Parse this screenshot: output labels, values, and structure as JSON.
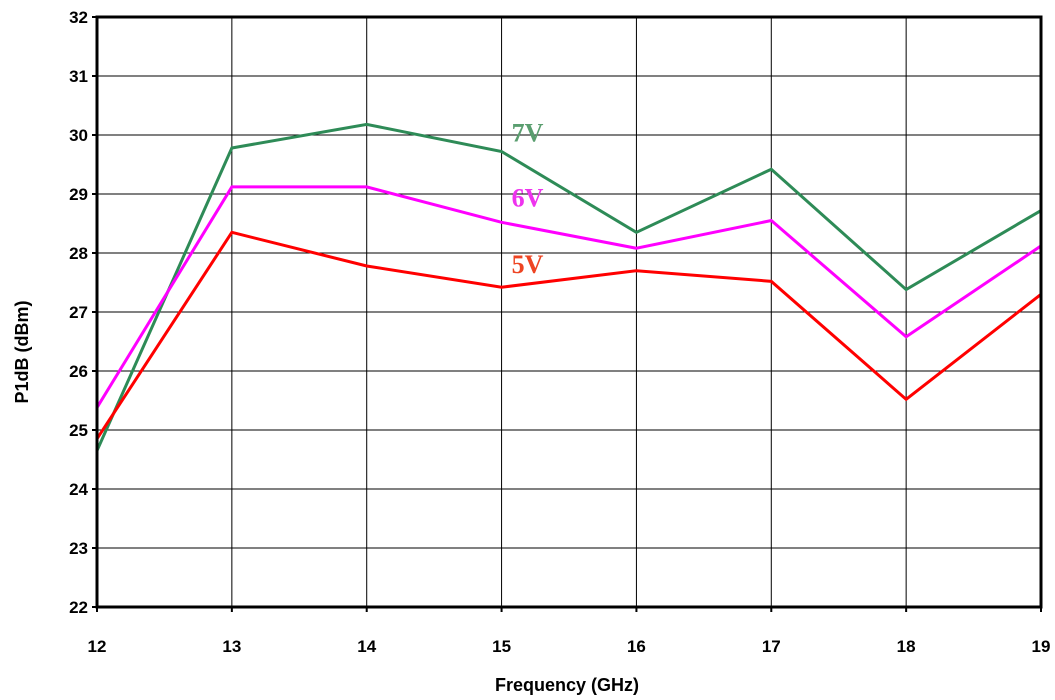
{
  "chart_data": {
    "type": "line",
    "xlabel": "Frequency (GHz)",
    "ylabel": "P1dB (dBm)",
    "xlim": [
      12,
      19
    ],
    "ylim": [
      22,
      32
    ],
    "x_ticks": [
      12,
      13,
      14,
      15,
      16,
      17,
      18,
      19
    ],
    "y_ticks": [
      22,
      23,
      24,
      25,
      26,
      27,
      28,
      29,
      30,
      31,
      32
    ],
    "grid": true,
    "x": [
      12,
      13,
      14,
      15,
      16,
      17,
      18,
      19
    ],
    "series": [
      {
        "name": "7V",
        "color": "#2e8b57",
        "label_color": "#5a9e6f",
        "values": [
          24.65,
          29.78,
          30.18,
          29.72,
          28.35,
          29.42,
          27.38,
          28.72
        ]
      },
      {
        "name": "6V",
        "color": "#ff00ff",
        "label_color": "#ee33ee",
        "values": [
          25.38,
          29.12,
          29.12,
          28.52,
          28.08,
          28.55,
          26.58,
          28.12
        ]
      },
      {
        "name": "5V",
        "color": "#ff0000",
        "label_color": "#ee4422",
        "values": [
          24.85,
          28.35,
          27.78,
          27.42,
          27.7,
          27.52,
          25.52,
          27.3
        ]
      }
    ]
  }
}
